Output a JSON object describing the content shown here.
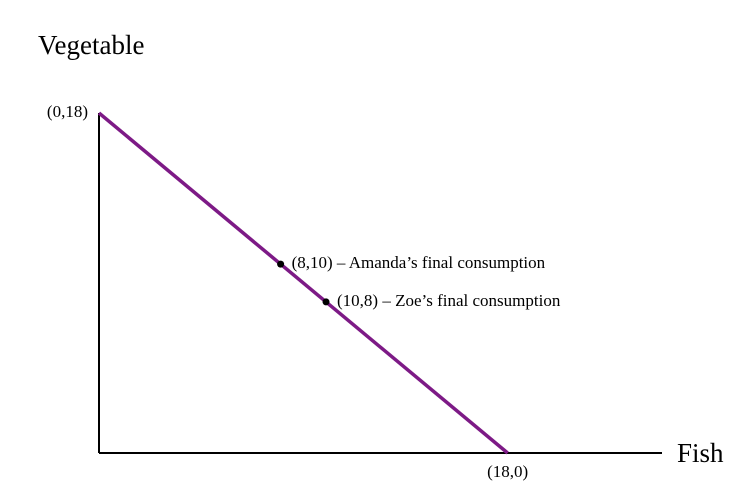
{
  "chart_data": {
    "type": "line",
    "x_label": "Fish",
    "y_label": "Vegetable",
    "x": [
      0,
      18
    ],
    "series": [
      {
        "color": "#7d1a86",
        "values": [
          18,
          0
        ]
      }
    ],
    "xlim": [
      0,
      24.8
    ],
    "ylim": [
      0,
      18
    ],
    "annotations": [
      {
        "x": 0,
        "y": 18,
        "label": "(0,18)",
        "marker": false
      },
      {
        "x": 8,
        "y": 10,
        "label": "(8,10) – Amanda’s final consumption",
        "marker": true
      },
      {
        "x": 10,
        "y": 8,
        "label": "(10,8) – Zoe’s final consumption",
        "marker": true
      },
      {
        "x": 18,
        "y": 0,
        "label": "(18,0)",
        "marker": false
      }
    ]
  }
}
